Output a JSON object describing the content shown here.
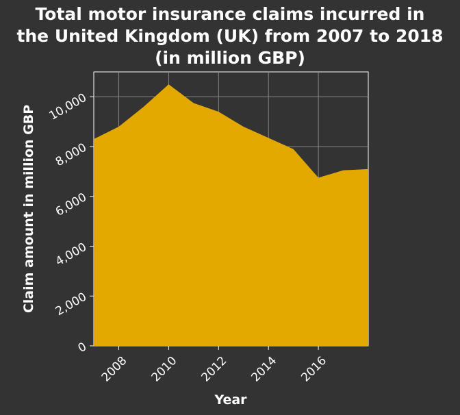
{
  "chart_data": {
    "type": "area",
    "title_lines": [
      "Total motor insurance claims incurred in",
      "the United Kingdom (UK) from 2007 to 2018",
      "(in million GBP)"
    ],
    "xlabel": "Year",
    "ylabel": "Claim amount in million GBP",
    "x": [
      2007,
      2008,
      2009,
      2010,
      2011,
      2012,
      2013,
      2014,
      2015,
      2016,
      2017,
      2018
    ],
    "values": [
      8300,
      8800,
      9600,
      10500,
      9750,
      9400,
      8800,
      8350,
      7900,
      6750,
      7050,
      7100
    ],
    "xlim": [
      2007,
      2018
    ],
    "ylim": [
      0,
      11000
    ],
    "x_ticks": [
      "2008",
      "2010",
      "2012",
      "2014",
      "2016"
    ],
    "y_ticks": [
      "0",
      "2,000",
      "4,000",
      "6,000",
      "8,000",
      "10,000"
    ],
    "grid": true,
    "colors": {
      "fill": "#e4a900",
      "background": "#333333",
      "plot_background": "#333333",
      "grid": "#888888",
      "text": "#ffffff"
    }
  }
}
